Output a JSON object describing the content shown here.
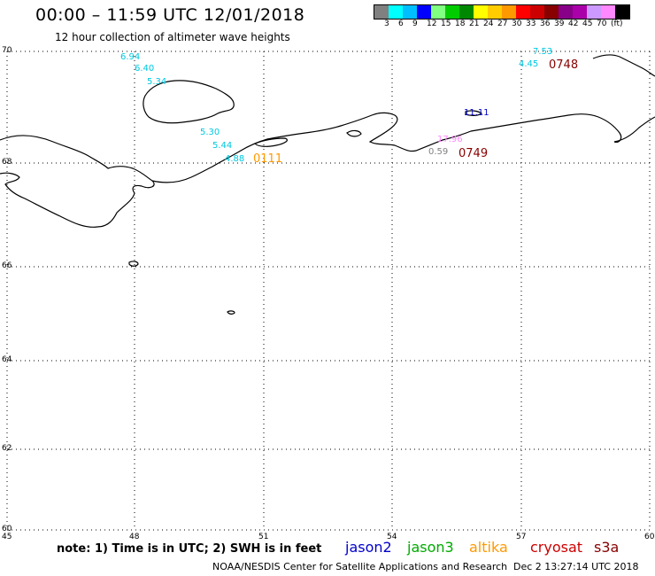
{
  "header": {
    "title": "00:00 – 11:59 UTC 12/01/2018",
    "subtitle": "12 hour collection of altimeter wave heights"
  },
  "colorbar": {
    "colors": [
      "#808080",
      "#00ffff",
      "#00bfff",
      "#0000ff",
      "#80ff80",
      "#00cc00",
      "#008800",
      "#ffff00",
      "#ffcc00",
      "#ff9900",
      "#ff0000",
      "#cc0000",
      "#880000",
      "#880088",
      "#aa00aa",
      "#cc99ff",
      "#ff88ff",
      "#000000"
    ],
    "labels": [
      "3",
      "6",
      "9",
      "12",
      "15",
      "18",
      "21",
      "24",
      "27",
      "30",
      "33",
      "36",
      "39",
      "42",
      "45",
      "70",
      "(ft)"
    ]
  },
  "axes": {
    "lon_labels": [
      "45",
      "48",
      "51",
      "54",
      "57",
      "60"
    ],
    "lat_labels": [
      "70",
      "68",
      "66",
      "64",
      "62",
      "60"
    ]
  },
  "observations": [
    {
      "text": "6.94",
      "color": "#00c8e0"
    },
    {
      "text": "6.40",
      "color": "#00c8e0"
    },
    {
      "text": "5.34",
      "color": "#00c8e0"
    },
    {
      "text": "5.30",
      "color": "#00c8e0"
    },
    {
      "text": "5.44",
      "color": "#00c8e0"
    },
    {
      "text": "4.88",
      "color": "#00c8e0"
    },
    {
      "text": "0111",
      "color": "#ff9900"
    },
    {
      "text": "7.53",
      "color": "#00c8e0"
    },
    {
      "text": "4.45",
      "color": "#00c8e0"
    },
    {
      "text": "0748",
      "color": "#880000"
    },
    {
      "text": "11.11",
      "color": "#0000cc"
    },
    {
      "text": "17.96",
      "color": "#ff88ff"
    },
    {
      "text": "0.59",
      "color": "#808080"
    },
    {
      "text": "0749",
      "color": "#880000"
    }
  ],
  "footer": {
    "note": "note: 1) Time is in UTC; 2) SWH is in feet",
    "satellites": [
      {
        "name": "jason2",
        "color": "#0000cc"
      },
      {
        "name": "jason3",
        "color": "#00aa00"
      },
      {
        "name": "altika",
        "color": "#ff9900"
      },
      {
        "name": "cryosat",
        "color": "#cc0000"
      },
      {
        "name": "s3a",
        "color": "#880000"
      }
    ],
    "credit": "NOAA/NESDIS Center for Satellite Applications and Research",
    "timestamp": "Dec  2 13:27:14 UTC 2018"
  }
}
